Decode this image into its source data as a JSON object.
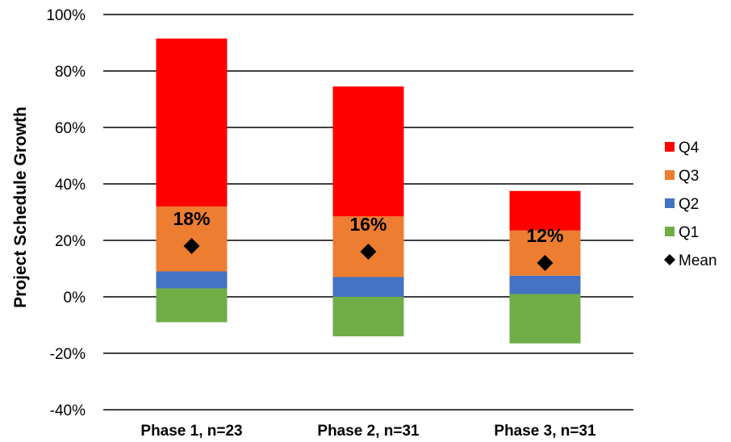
{
  "chart_data": {
    "type": "bar",
    "stacked": true,
    "title": "",
    "xlabel": "",
    "ylabel": "Project Schedule Growth",
    "ylim": [
      -40,
      100
    ],
    "yticks": [
      -40,
      -20,
      0,
      20,
      40,
      60,
      80,
      100
    ],
    "ytick_labels": [
      "-40%",
      "-20%",
      "0%",
      "20%",
      "40%",
      "60%",
      "80%",
      "100%"
    ],
    "grid": true,
    "legend": "right",
    "categories": [
      "Phase 1, n=23",
      "Phase 2, n=31",
      "Phase 3, n=31"
    ],
    "series": [
      {
        "name": "Q1",
        "color": "#70ad47",
        "ranges": [
          [
            -9,
            3
          ],
          [
            -14,
            0
          ],
          [
            -16.5,
            1
          ]
        ]
      },
      {
        "name": "Q2",
        "color": "#4472c4",
        "ranges": [
          [
            3,
            9
          ],
          [
            0,
            7
          ],
          [
            1,
            7.5
          ]
        ]
      },
      {
        "name": "Q3",
        "color": "#ed7d31",
        "ranges": [
          [
            9,
            32
          ],
          [
            7,
            28.5
          ],
          [
            7.5,
            23.5
          ]
        ]
      },
      {
        "name": "Q4",
        "color": "#ff0000",
        "ranges": [
          [
            32,
            91.5
          ],
          [
            28.5,
            74.5
          ],
          [
            23.5,
            37.5
          ]
        ]
      }
    ],
    "mean": {
      "name": "Mean",
      "values": [
        18,
        16,
        12
      ],
      "labels": [
        "18%",
        "16%",
        "12%"
      ]
    }
  }
}
